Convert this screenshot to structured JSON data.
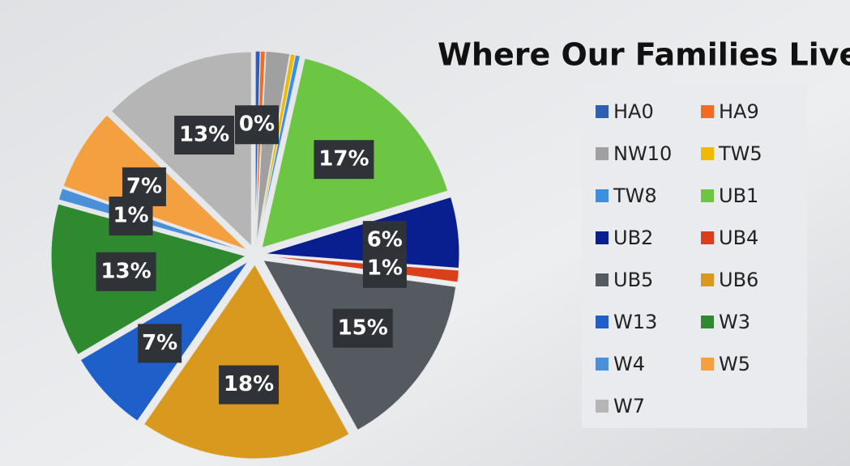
{
  "chart_data": {
    "type": "pie",
    "title": "Where Our Families Live",
    "categories": [
      "HA0",
      "HA9",
      "NW10",
      "TW5",
      "TW8",
      "UB1",
      "UB2",
      "UB4",
      "UB5",
      "UB6",
      "W13",
      "W3",
      "W4",
      "W5",
      "W7"
    ],
    "values": [
      0.4,
      0.4,
      2,
      0.4,
      0.4,
      17,
      6,
      1,
      15,
      18,
      7,
      13,
      1,
      7,
      13
    ],
    "value_labels": [
      "0%",
      null,
      null,
      null,
      null,
      "17%",
      "6%",
      "1%",
      "15%",
      "18%",
      "7%",
      "13%",
      "1%",
      "7%",
      "13%"
    ],
    "colors": [
      "#2e5fb5",
      "#f26b21",
      "#a0a0a0",
      "#f2b800",
      "#3a8fe0",
      "#6cc644",
      "#0a1f8f",
      "#d9401a",
      "#555a60",
      "#d9981e",
      "#1f5fc9",
      "#2f8a2f",
      "#4a90d9",
      "#f5a040",
      "#b5b5b5"
    ],
    "legend": "right"
  }
}
